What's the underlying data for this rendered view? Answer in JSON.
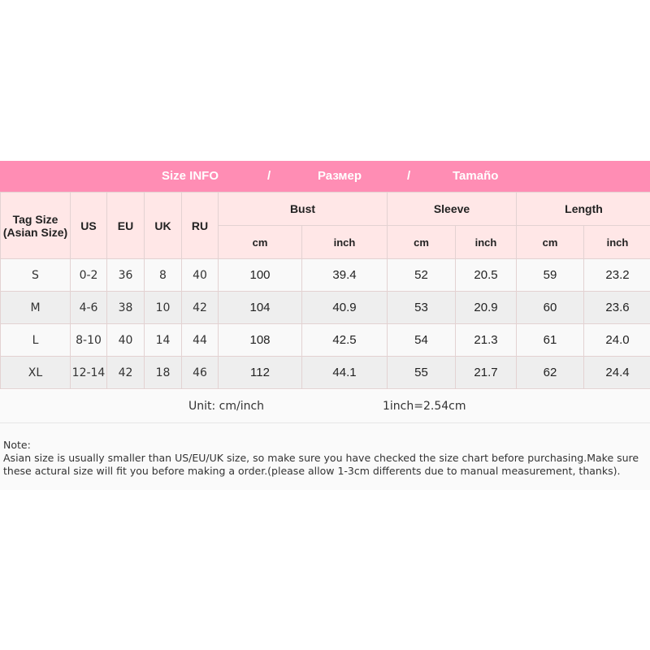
{
  "title": {
    "en": "Size INFO",
    "sep1": "/",
    "ru": "Размер",
    "sep2": "/",
    "es": "Tamaño"
  },
  "colors": {
    "title_bar": "#ff8db4",
    "header_bg": "#ffe7e7",
    "row_alt": "#eeeeee"
  },
  "headers": {
    "tag_size": "Tag Size (Asian Size)",
    "us": "US",
    "eu": "EU",
    "uk": "UK",
    "ru": "RU",
    "bust": "Bust",
    "sleeve": "Sleeve",
    "length": "Length",
    "cm": "cm",
    "inch": "inch"
  },
  "rows": [
    [
      "S",
      "0-2",
      "36",
      "8",
      "40",
      "100",
      "39.4",
      "52",
      "20.5",
      "59",
      "23.2"
    ],
    [
      "M",
      "4-6",
      "38",
      "10",
      "42",
      "104",
      "40.9",
      "53",
      "20.9",
      "60",
      "23.6"
    ],
    [
      "L",
      "8-10",
      "40",
      "14",
      "44",
      "108",
      "42.5",
      "54",
      "21.3",
      "61",
      "24.0"
    ],
    [
      "XL",
      "12-14",
      "42",
      "18",
      "46",
      "112",
      "44.1",
      "55",
      "21.7",
      "62",
      "24.4"
    ]
  ],
  "unit": {
    "label": "Unit: cm/inch",
    "conversion": "1inch=2.54cm"
  },
  "note": {
    "heading": "Note:",
    "line1": "Asian size is usually smaller than US/EU/UK size, so make sure you have checked the size chart before purchasing.Make sure",
    "line2": "these actural size will fit you before making a order.(please allow 1-3cm differents due to manual measurement, thanks)."
  }
}
